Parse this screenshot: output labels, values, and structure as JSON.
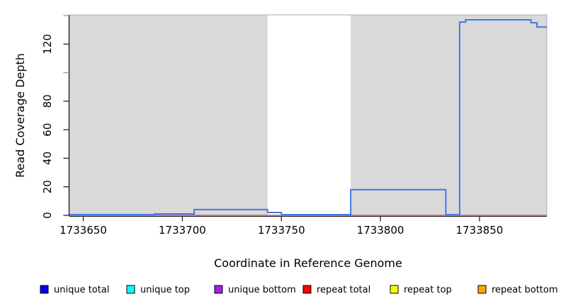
{
  "chart_data": {
    "type": "line",
    "subtype": "step-coverage",
    "title": "",
    "xlabel": "Coordinate in Reference Genome",
    "ylabel": "Read Coverage Depth",
    "xlim": [
      1733643,
      1733884
    ],
    "ylim": [
      0,
      141
    ],
    "grid": false,
    "x_ticks": [
      1733650,
      1733700,
      1733750,
      1733800,
      1733850
    ],
    "x_tick_labels": [
      "1733650",
      "1733700",
      "1733750",
      "1733800",
      "1733850"
    ],
    "y_ticks": [
      0,
      20,
      40,
      60,
      80,
      100,
      120,
      140
    ],
    "y_tick_labels": [
      "0",
      "20",
      "40",
      "60",
      "80",
      "",
      "120",
      ""
    ],
    "plot_bg": "#ffffff",
    "shaded_regions": [
      {
        "x0": 1733643,
        "x1": 1733743,
        "color": "#d9d9d9"
      },
      {
        "x0": 1733785,
        "x1": 1733884,
        "color": "#d9d9d9"
      }
    ],
    "series": [
      {
        "name": "repeat total",
        "line_color": "#d55c7a",
        "steps": [
          {
            "x0": 1733643,
            "x1": 1733884,
            "y": 0
          }
        ]
      },
      {
        "name": "unique total",
        "line_color": "#4478e4",
        "steps": [
          {
            "x0": 1733643,
            "x1": 1733686,
            "y": 0
          },
          {
            "x0": 1733686,
            "x1": 1733706,
            "y": 1
          },
          {
            "x0": 1733706,
            "x1": 1733743,
            "y": 4
          },
          {
            "x0": 1733743,
            "x1": 1733750,
            "y": 2
          },
          {
            "x0": 1733750,
            "x1": 1733785,
            "y": 0
          },
          {
            "x0": 1733785,
            "x1": 1733833,
            "y": 18
          },
          {
            "x0": 1733833,
            "x1": 1733840,
            "y": 0
          },
          {
            "x0": 1733840,
            "x1": 1733843,
            "y": 135.5
          },
          {
            "x0": 1733843,
            "x1": 1733876,
            "y": 137
          },
          {
            "x0": 1733876,
            "x1": 1733879,
            "y": 135
          },
          {
            "x0": 1733879,
            "x1": 1733884,
            "y": 132
          }
        ]
      }
    ],
    "legend_position": "bottom",
    "legend": [
      {
        "label": "unique total",
        "color": "#0000ff"
      },
      {
        "label": "unique top",
        "color": "#00ffff"
      },
      {
        "label": "unique bottom",
        "color": "#a020f0"
      },
      {
        "label": "repeat total",
        "color": "#ff0000"
      },
      {
        "label": "repeat top",
        "color": "#ffff00"
      },
      {
        "label": "repeat bottom",
        "color": "#ffa500"
      }
    ],
    "axis_colors": {
      "labeled_tick": "#222222",
      "unlabeled_tick": "#999999",
      "plot_border": "#adadad"
    }
  }
}
